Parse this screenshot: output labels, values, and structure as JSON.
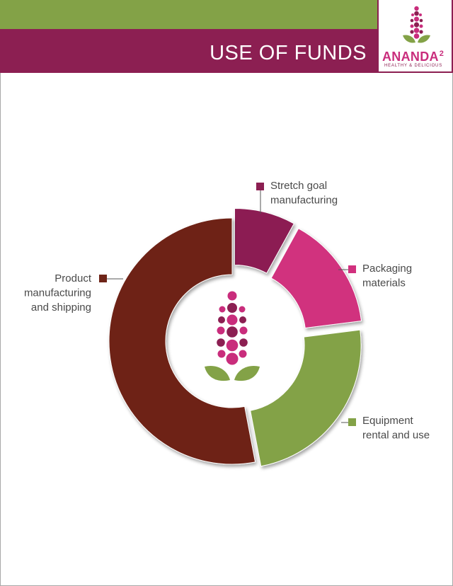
{
  "header": {
    "title": "USE OF FUNDS"
  },
  "logo": {
    "word": "ANANDA",
    "superscript": "2",
    "tagline": "HEALTHY & DELICIOUS",
    "icon": "flower-sprig-icon"
  },
  "colors": {
    "green": "#83a247",
    "plum": "#8c1f52",
    "pink": "#d1307e",
    "maroon": "#6e2418",
    "stretch": "#8c1f52"
  },
  "chart_data": {
    "type": "pie",
    "style": "donut",
    "title": "",
    "center_icon": "flower-sprig-icon",
    "slices": [
      {
        "label": "Stretch goal manufacturing",
        "label_lines": [
          "Stretch goal",
          "manufacturing"
        ],
        "value": 8,
        "color": "#8c1f52"
      },
      {
        "label": "Packaging materials",
        "label_lines": [
          "Packaging",
          "materials"
        ],
        "value": 15,
        "color": "#d1307e"
      },
      {
        "label": "Equipment rental and use",
        "label_lines": [
          "Equipment",
          "rental and use"
        ],
        "value": 24,
        "color": "#83a247"
      },
      {
        "label": "Product manufacturing and shipping",
        "label_lines": [
          "Product",
          "manufacturing",
          "and shipping"
        ],
        "value": 53,
        "color": "#6e2418"
      }
    ]
  }
}
